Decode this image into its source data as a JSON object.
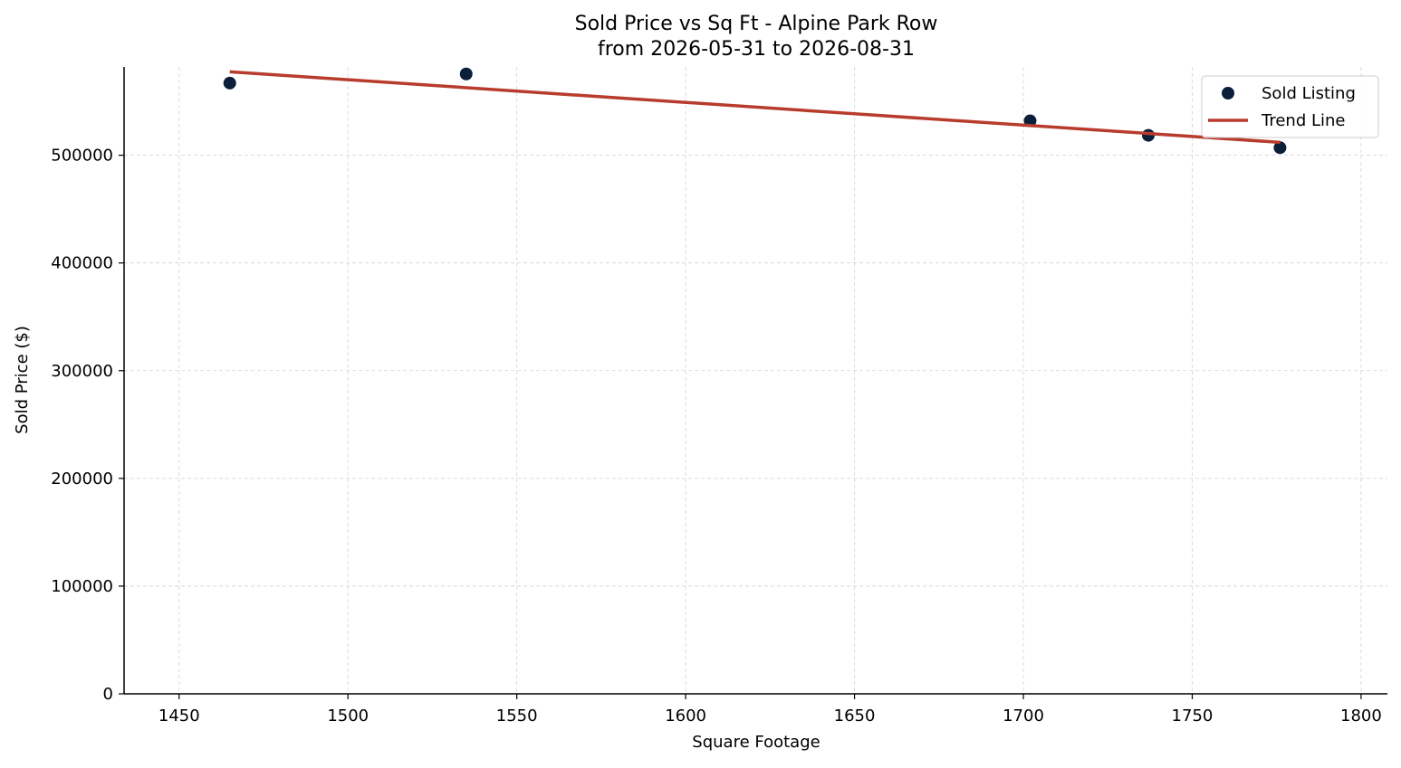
{
  "chart_data": {
    "type": "scatter",
    "title": "Sold Price vs Sq Ft - Alpine Park Row",
    "subtitle": "from 2026-05-31 to 2026-08-31",
    "xlabel": "Square Footage",
    "ylabel": "Sold Price ($)",
    "xlim": [
      1433.7,
      1807.8
    ],
    "ylim": [
      0,
      582000
    ],
    "x_ticks": [
      1450,
      1500,
      1550,
      1600,
      1650,
      1700,
      1750,
      1800
    ],
    "y_ticks": [
      0,
      100000,
      200000,
      300000,
      400000,
      500000
    ],
    "grid": true,
    "legend_position": "top-right",
    "series": [
      {
        "name": "Sold Listing",
        "kind": "scatter",
        "color": "#0b1f3a",
        "points": [
          {
            "x": 1465,
            "y": 567000
          },
          {
            "x": 1535,
            "y": 575500
          },
          {
            "x": 1702,
            "y": 532000
          },
          {
            "x": 1737,
            "y": 518500
          },
          {
            "x": 1776,
            "y": 507000
          }
        ]
      },
      {
        "name": "Trend Line",
        "kind": "line",
        "color": "#b83c2d",
        "points": [
          {
            "x": 1465,
            "y": 577500
          },
          {
            "x": 1776,
            "y": 512000
          }
        ]
      }
    ]
  }
}
